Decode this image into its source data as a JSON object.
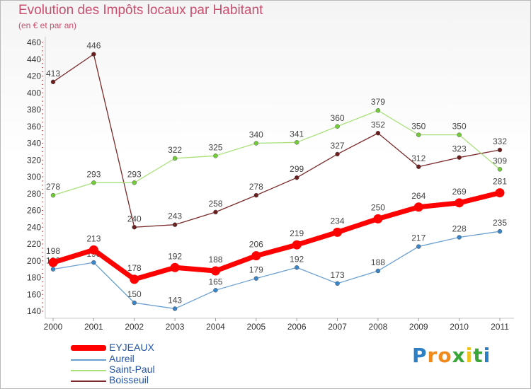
{
  "header": {
    "title": "Evolution des Impôts locaux par Habitant",
    "subtitle": "(en € et par an)"
  },
  "brand": {
    "letters": [
      "P",
      "r",
      "o",
      "x",
      "i",
      "t",
      "i"
    ],
    "colors": [
      "#2c7fc4",
      "#f08a1c",
      "#f08a1c",
      "#3aa63a",
      "#f0c21c",
      "#3aa63a",
      "#2c7fc4"
    ]
  },
  "chart_data": {
    "type": "line",
    "title": "Evolution des Impôts locaux par Habitant",
    "subtitle": "(en € et par an)",
    "xlabel": "",
    "ylabel": "",
    "ylim": [
      140,
      460
    ],
    "ytick_step": 20,
    "grid": false,
    "legend_position": "bottom-left",
    "categories": [
      "2000",
      "2001",
      "2002",
      "2003",
      "2004",
      "2005",
      "2006",
      "2007",
      "2008",
      "2009",
      "2010",
      "2011"
    ],
    "series": [
      {
        "name": "Boisseuil",
        "color": "#7a2a2a",
        "point_color": "#6b1e1e",
        "values": [
          413,
          446,
          240,
          243,
          258,
          278,
          299,
          327,
          352,
          312,
          323,
          332
        ]
      },
      {
        "name": "Saint-Paul",
        "color": "#a9e07a",
        "point_color": "#72cc3a",
        "values": [
          278,
          293,
          293,
          322,
          325,
          340,
          341,
          360,
          379,
          350,
          350,
          309
        ]
      },
      {
        "name": "Aureil",
        "color": "#6a9fd0",
        "point_color": "#3a84c8",
        "values": [
          190,
          198,
          150,
          143,
          165,
          179,
          192,
          173,
          188,
          217,
          228,
          235
        ]
      },
      {
        "name": "EYJEAUX",
        "color": "#ff0000",
        "point_color": "#ff0000",
        "values": [
          198,
          213,
          178,
          192,
          188,
          206,
          219,
          234,
          250,
          264,
          269,
          281
        ]
      }
    ]
  }
}
